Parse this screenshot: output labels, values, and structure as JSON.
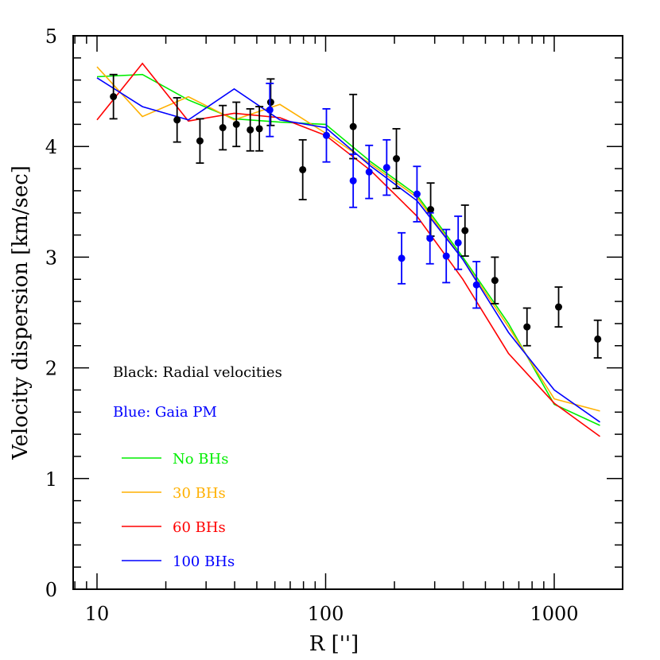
{
  "chart_data": {
    "type": "line",
    "title": "",
    "xlabel": "R ['']",
    "ylabel": "Velocity dispersion [km/sec]",
    "xscale": "log",
    "xlim": [
      8,
      2000
    ],
    "ylim": [
      0,
      5
    ],
    "x_ticks": [
      10,
      100,
      1000
    ],
    "x_tick_labels": [
      "10",
      "100",
      "1000"
    ],
    "y_ticks": [
      0,
      1,
      2,
      3,
      4,
      5
    ],
    "y_tick_labels": [
      "0",
      "1",
      "2",
      "3",
      "4",
      "5"
    ],
    "grid": false,
    "annotations": [
      {
        "text": "Black: Radial velocities",
        "color": "#000000"
      },
      {
        "text": "Blue: Gaia PM",
        "color": "#0000ff"
      }
    ],
    "legend": [
      {
        "label": "No BHs",
        "color": "#00ee00"
      },
      {
        "label": "30 BHs",
        "color": "#ffb000"
      },
      {
        "label": "60 BHs",
        "color": "#ff0000"
      },
      {
        "label": "100 BHs",
        "color": "#0000ff"
      }
    ],
    "series": [
      {
        "name": "No BHs",
        "color": "#00ee00",
        "kind": "line",
        "x": [
          10,
          15.8,
          25.1,
          39.8,
          63.1,
          100,
          158,
          251,
          398,
          631,
          1000,
          1585
        ],
        "y": [
          4.63,
          4.65,
          4.42,
          4.25,
          4.22,
          4.2,
          3.86,
          3.56,
          3.0,
          2.4,
          1.67,
          1.48
        ]
      },
      {
        "name": "30 BHs",
        "color": "#ffb000",
        "kind": "line",
        "x": [
          10,
          15.8,
          25.1,
          39.8,
          63.1,
          100,
          158,
          251,
          398,
          631,
          1000,
          1585
        ],
        "y": [
          4.72,
          4.27,
          4.45,
          4.24,
          4.38,
          4.12,
          3.84,
          3.54,
          2.98,
          2.37,
          1.72,
          1.61
        ]
      },
      {
        "name": "60 BHs",
        "color": "#ff0000",
        "kind": "line",
        "x": [
          10,
          15.8,
          25.1,
          39.8,
          63.1,
          100,
          158,
          251,
          398,
          631,
          1000,
          1585
        ],
        "y": [
          4.24,
          4.75,
          4.23,
          4.3,
          4.26,
          4.1,
          3.78,
          3.37,
          2.8,
          2.13,
          1.68,
          1.38
        ]
      },
      {
        "name": "100 BHs",
        "color": "#0000ff",
        "kind": "line",
        "x": [
          10,
          15.8,
          25.1,
          39.8,
          63.1,
          100,
          158,
          251,
          398,
          631,
          1000,
          1585
        ],
        "y": [
          4.62,
          4.36,
          4.24,
          4.52,
          4.24,
          4.17,
          3.82,
          3.51,
          2.98,
          2.32,
          1.8,
          1.51
        ]
      },
      {
        "name": "Radial velocities",
        "color": "#000000",
        "kind": "errorbar",
        "x": [
          11.8,
          22.4,
          28.2,
          35.5,
          40.7,
          46.8,
          51.3,
          57.5,
          79.4,
          132,
          204,
          288,
          407,
          550,
          760,
          1045,
          1550
        ],
        "y": [
          4.45,
          4.24,
          4.05,
          4.17,
          4.2,
          4.15,
          4.16,
          4.4,
          3.79,
          4.18,
          3.89,
          3.43,
          3.24,
          2.79,
          2.37,
          2.55,
          2.26
        ],
        "err": [
          0.2,
          0.2,
          0.2,
          0.2,
          0.2,
          0.19,
          0.2,
          0.21,
          0.27,
          0.29,
          0.27,
          0.24,
          0.23,
          0.21,
          0.17,
          0.18,
          0.17
        ]
      },
      {
        "name": "Gaia PM",
        "color": "#0000ff",
        "kind": "errorbar",
        "x": [
          57.0,
          100.8,
          132,
          155,
          185,
          251,
          215,
          286,
          337,
          380,
          457
        ],
        "y": [
          4.33,
          4.1,
          3.69,
          3.77,
          3.81,
          3.57,
          2.99,
          3.17,
          3.01,
          3.13,
          2.75
        ],
        "err": [
          0.24,
          0.24,
          0.24,
          0.24,
          0.25,
          0.25,
          0.23,
          0.23,
          0.24,
          0.24,
          0.21
        ]
      }
    ]
  }
}
